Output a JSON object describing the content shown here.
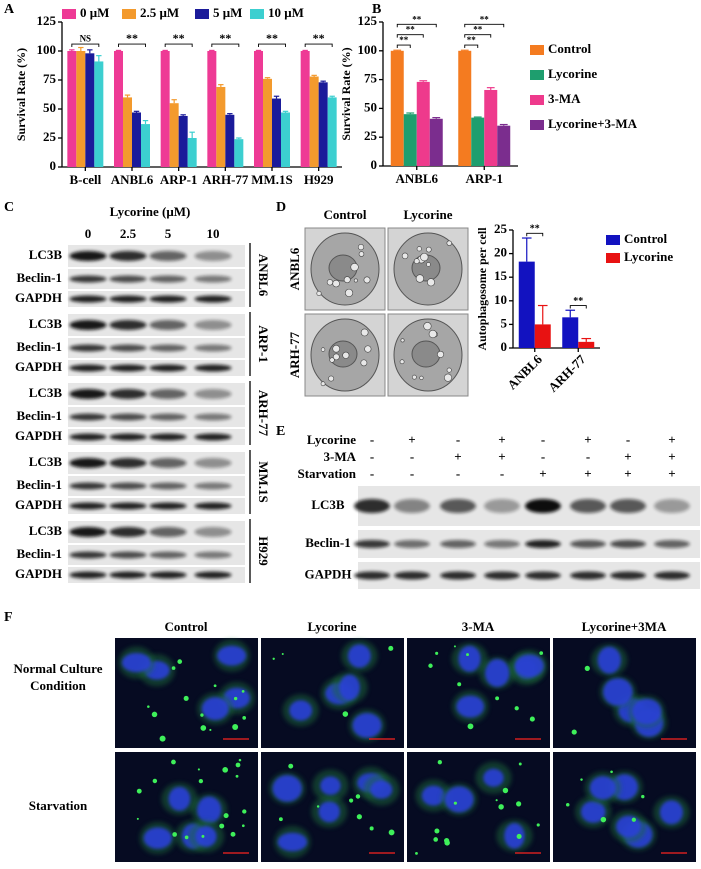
{
  "panel_labels": [
    "A",
    "B",
    "C",
    "D",
    "E",
    "F"
  ],
  "chart_data": [
    {
      "type": "bar",
      "y_label": "Survival Rate (%)",
      "categories": [
        "B-cell",
        "ANBL6",
        "ARP-1",
        "ARH-77",
        "MM.1S",
        "H929"
      ],
      "series": [
        {
          "name": "0 μM",
          "color": "#ee3a95",
          "values": [
            100,
            100,
            100,
            100,
            100,
            100
          ],
          "errors": [
            1,
            0.5,
            0.5,
            0.5,
            0.5,
            0.5
          ]
        },
        {
          "name": "2.5 μM",
          "color": "#f39a2d",
          "values": [
            100,
            60,
            55,
            69,
            76,
            78
          ],
          "errors": [
            3,
            2,
            3,
            2,
            1,
            1
          ]
        },
        {
          "name": "5 μM",
          "color": "#1b1b9a",
          "values": [
            98,
            47,
            44,
            45,
            59,
            73
          ],
          "errors": [
            3,
            1,
            1,
            1,
            2,
            1
          ]
        },
        {
          "name": "10 μM",
          "color": "#3ccfd0",
          "values": [
            91,
            37,
            25,
            24,
            47,
            60
          ],
          "errors": [
            5,
            3,
            5,
            1,
            1,
            1
          ]
        }
      ],
      "ylim": [
        0,
        125
      ],
      "yticks": [
        0,
        25,
        50,
        75,
        100,
        125
      ],
      "annotations": [
        "NS",
        "**",
        "**",
        "**",
        "**",
        "**"
      ],
      "legend": "top"
    },
    {
      "type": "bar",
      "y_label": "Survival Rate (%)",
      "categories": [
        "ANBL6",
        "ARP-1"
      ],
      "series": [
        {
          "name": "Control",
          "color": "#f47b20",
          "values": [
            100,
            100
          ],
          "errors": [
            0.5,
            0.5
          ]
        },
        {
          "name": "Lycorine",
          "color": "#1e9e6e",
          "values": [
            45,
            42
          ],
          "errors": [
            1,
            0.5
          ]
        },
        {
          "name": "3-MA",
          "color": "#ee3a8c",
          "values": [
            73,
            66
          ],
          "errors": [
            1,
            2
          ]
        },
        {
          "name": "Lycorine+3-MA",
          "color": "#7b2d8e",
          "values": [
            41,
            35
          ],
          "errors": [
            1,
            1
          ]
        }
      ],
      "ylim": [
        0,
        125
      ],
      "yticks": [
        0,
        25,
        50,
        75,
        100,
        125
      ],
      "annotations": [
        "**",
        "**",
        "**",
        "**",
        "**",
        "**"
      ],
      "legend": "right"
    },
    {
      "type": "bar",
      "y_label": "Autophagosome per cell",
      "categories": [
        "ANBL6",
        "ARH-77"
      ],
      "series": [
        {
          "name": "Control",
          "color": "#1212c0",
          "values": [
            18.3,
            6.5
          ],
          "errors": [
            5,
            1.5
          ]
        },
        {
          "name": "Lycorine",
          "color": "#e81212",
          "values": [
            5,
            1.3
          ],
          "errors": [
            4,
            0.7
          ]
        }
      ],
      "ylim": [
        0,
        25
      ],
      "yticks": [
        0,
        5,
        10,
        15,
        20,
        25
      ],
      "annotations": [
        "**",
        "**"
      ],
      "legend": "right"
    }
  ],
  "blot_C": {
    "title": "Lycorine (μM)",
    "lanes": [
      "0",
      "2.5",
      "5",
      "10"
    ],
    "groups": [
      {
        "cell_line": "ANBL6",
        "proteins": [
          "LC3B",
          "Beclin-1",
          "GAPDH"
        ]
      },
      {
        "cell_line": "ARP-1",
        "proteins": [
          "LC3B",
          "Beclin-1",
          "GAPDH"
        ]
      },
      {
        "cell_line": "ARH-77",
        "proteins": [
          "LC3B",
          "Beclin-1",
          "GAPDH"
        ]
      },
      {
        "cell_line": "MM.1S",
        "proteins": [
          "LC3B",
          "Beclin-1",
          "GAPDH"
        ]
      },
      {
        "cell_line": "H929",
        "proteins": [
          "LC3B",
          "Beclin-1",
          "GAPDH"
        ]
      }
    ]
  },
  "images_D": {
    "columns": [
      "Control",
      "Lycorine"
    ],
    "rows": [
      "ANBL6",
      "ARH-77"
    ]
  },
  "blot_E": {
    "conditions": [
      {
        "name": "Lycorine",
        "signs": [
          "-",
          "+",
          "-",
          "+",
          "-",
          "+",
          "-",
          "+"
        ]
      },
      {
        "name": "3-MA",
        "signs": [
          "-",
          "-",
          "+",
          "+",
          "-",
          "-",
          "+",
          "+"
        ]
      },
      {
        "name": "Starvation",
        "signs": [
          "-",
          "-",
          "-",
          "-",
          "+",
          "+",
          "+",
          "+"
        ]
      }
    ],
    "proteins": [
      "LC3B",
      "Beclin-1",
      "GAPDH"
    ]
  },
  "images_F": {
    "columns": [
      "Control",
      "Lycorine",
      "3-MA",
      "Lycorine+3MA"
    ],
    "rows": [
      "Normal Culture Condition",
      "Starvation"
    ]
  }
}
